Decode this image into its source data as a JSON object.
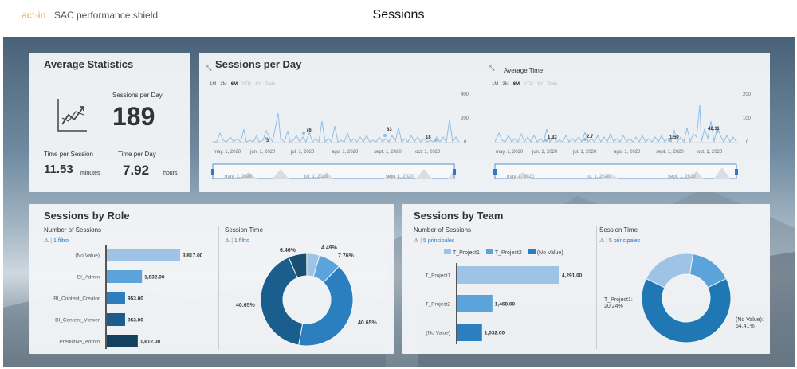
{
  "header": {
    "logo": "act·in",
    "product": "SAC performance shield",
    "title": "Sessions"
  },
  "average_statistics": {
    "title": "Average Statistics",
    "sessions_per_day_label": "Sessions per Day",
    "sessions_per_day_value": "189",
    "time_per_session_label": "Time per Session",
    "time_per_session_value": "11.53",
    "time_per_session_unit": "minutes",
    "time_per_day_label": "Time per Day",
    "time_per_day_value": "7.92",
    "time_per_day_unit": "hours"
  },
  "sessions_per_day": {
    "title": "Sessions per Day",
    "range_buttons": [
      "1M",
      "3M",
      "6M",
      "YTD",
      "1Y",
      "Todo"
    ],
    "selected_range": "6M",
    "left_chart": {
      "y_ticks": [
        "400",
        "200",
        "0"
      ],
      "x_ticks": [
        "may. 1, 2020",
        "jun. 1, 2020",
        "jul. 1, 2020",
        "ago. 1, 2020",
        "sept. 1, 2020",
        "oct. 1, 2020"
      ],
      "annotations": [
        "3",
        "76",
        "83",
        "18"
      ],
      "navigator_ticks": [
        "may. 1, 2020",
        "jul. 1, 2020",
        "sept. 1, 2020"
      ]
    },
    "right_chart": {
      "title": "Average Time",
      "y_ticks": [
        "200",
        "100",
        "0"
      ],
      "x_ticks": [
        "may. 1, 2020",
        "jun. 1, 2020",
        "jul. 1, 2020",
        "ago. 1, 2020",
        "sept. 1, 2020",
        "oct. 1, 2020"
      ],
      "annotations": [
        "1.33",
        "2.7",
        "1.59",
        "42.11"
      ],
      "navigator_ticks": [
        "may. 1, 2020",
        "jul. 1, 2020",
        "sept. 1, 2020"
      ]
    }
  },
  "sessions_by_role": {
    "title": "Sessions by Role",
    "bar_subtitle": "Number of Sessions",
    "bar_filter": "1 filtro",
    "donut_subtitle": "Session Time",
    "donut_filter": "1 filtro",
    "donut_labels": [
      "6.46%",
      "4.49%",
      "7.76%",
      "40.65%",
      "40.65%"
    ]
  },
  "sessions_by_team": {
    "title": "Sessions by Team",
    "bar_subtitle": "Number of Sessions",
    "bar_filter": "5 principales",
    "legend": [
      "T_Project1",
      "T_Project2",
      "(No Value)"
    ],
    "donut_subtitle": "Session Time",
    "donut_filter": "5 principales",
    "donut_label_1a": "T_Project1:",
    "donut_label_1b": "20.24%",
    "donut_label_2a": "(No Value):",
    "donut_label_2b": "64.41%"
  },
  "chart_data": [
    {
      "type": "bar",
      "title": "Number of Sessions",
      "categories": [
        "(No Value)",
        "BI_Admin",
        "BI_Content_Creator",
        "BI_Content_Viewer",
        "Predictive_Admin"
      ],
      "values": [
        3817,
        1832,
        953,
        953,
        1612
      ],
      "value_labels": [
        "3,817.00",
        "1,832.00",
        "953.00",
        "953.00",
        "1,612.00"
      ],
      "colors": [
        "#9dc3e6",
        "#5aa4db",
        "#2b7fbf",
        "#1b5d8c",
        "#13405f"
      ]
    },
    {
      "type": "pie",
      "title": "Session Time",
      "values": [
        6.46,
        4.49,
        7.76,
        40.65,
        40.65
      ],
      "colors": [
        "#1b4f72",
        "#9dc3e6",
        "#5aa4db",
        "#2b7fbf",
        "#1a5e8e"
      ]
    },
    {
      "type": "bar",
      "title": "Number of Sessions",
      "categories": [
        "T_Project1",
        "T_Project2",
        "(No Value)"
      ],
      "values": [
        4291,
        1468,
        1032
      ],
      "value_labels": [
        "4,291.00",
        "1,468.00",
        "1,032.00"
      ],
      "colors": [
        "#9dc3e6",
        "#5aa4db",
        "#2b7fbf"
      ]
    },
    {
      "type": "pie",
      "title": "Session Time",
      "values": [
        20.24,
        15.35,
        64.41
      ],
      "colors": [
        "#9dc3e6",
        "#5aa4db",
        "#1f77b4"
      ]
    }
  ]
}
